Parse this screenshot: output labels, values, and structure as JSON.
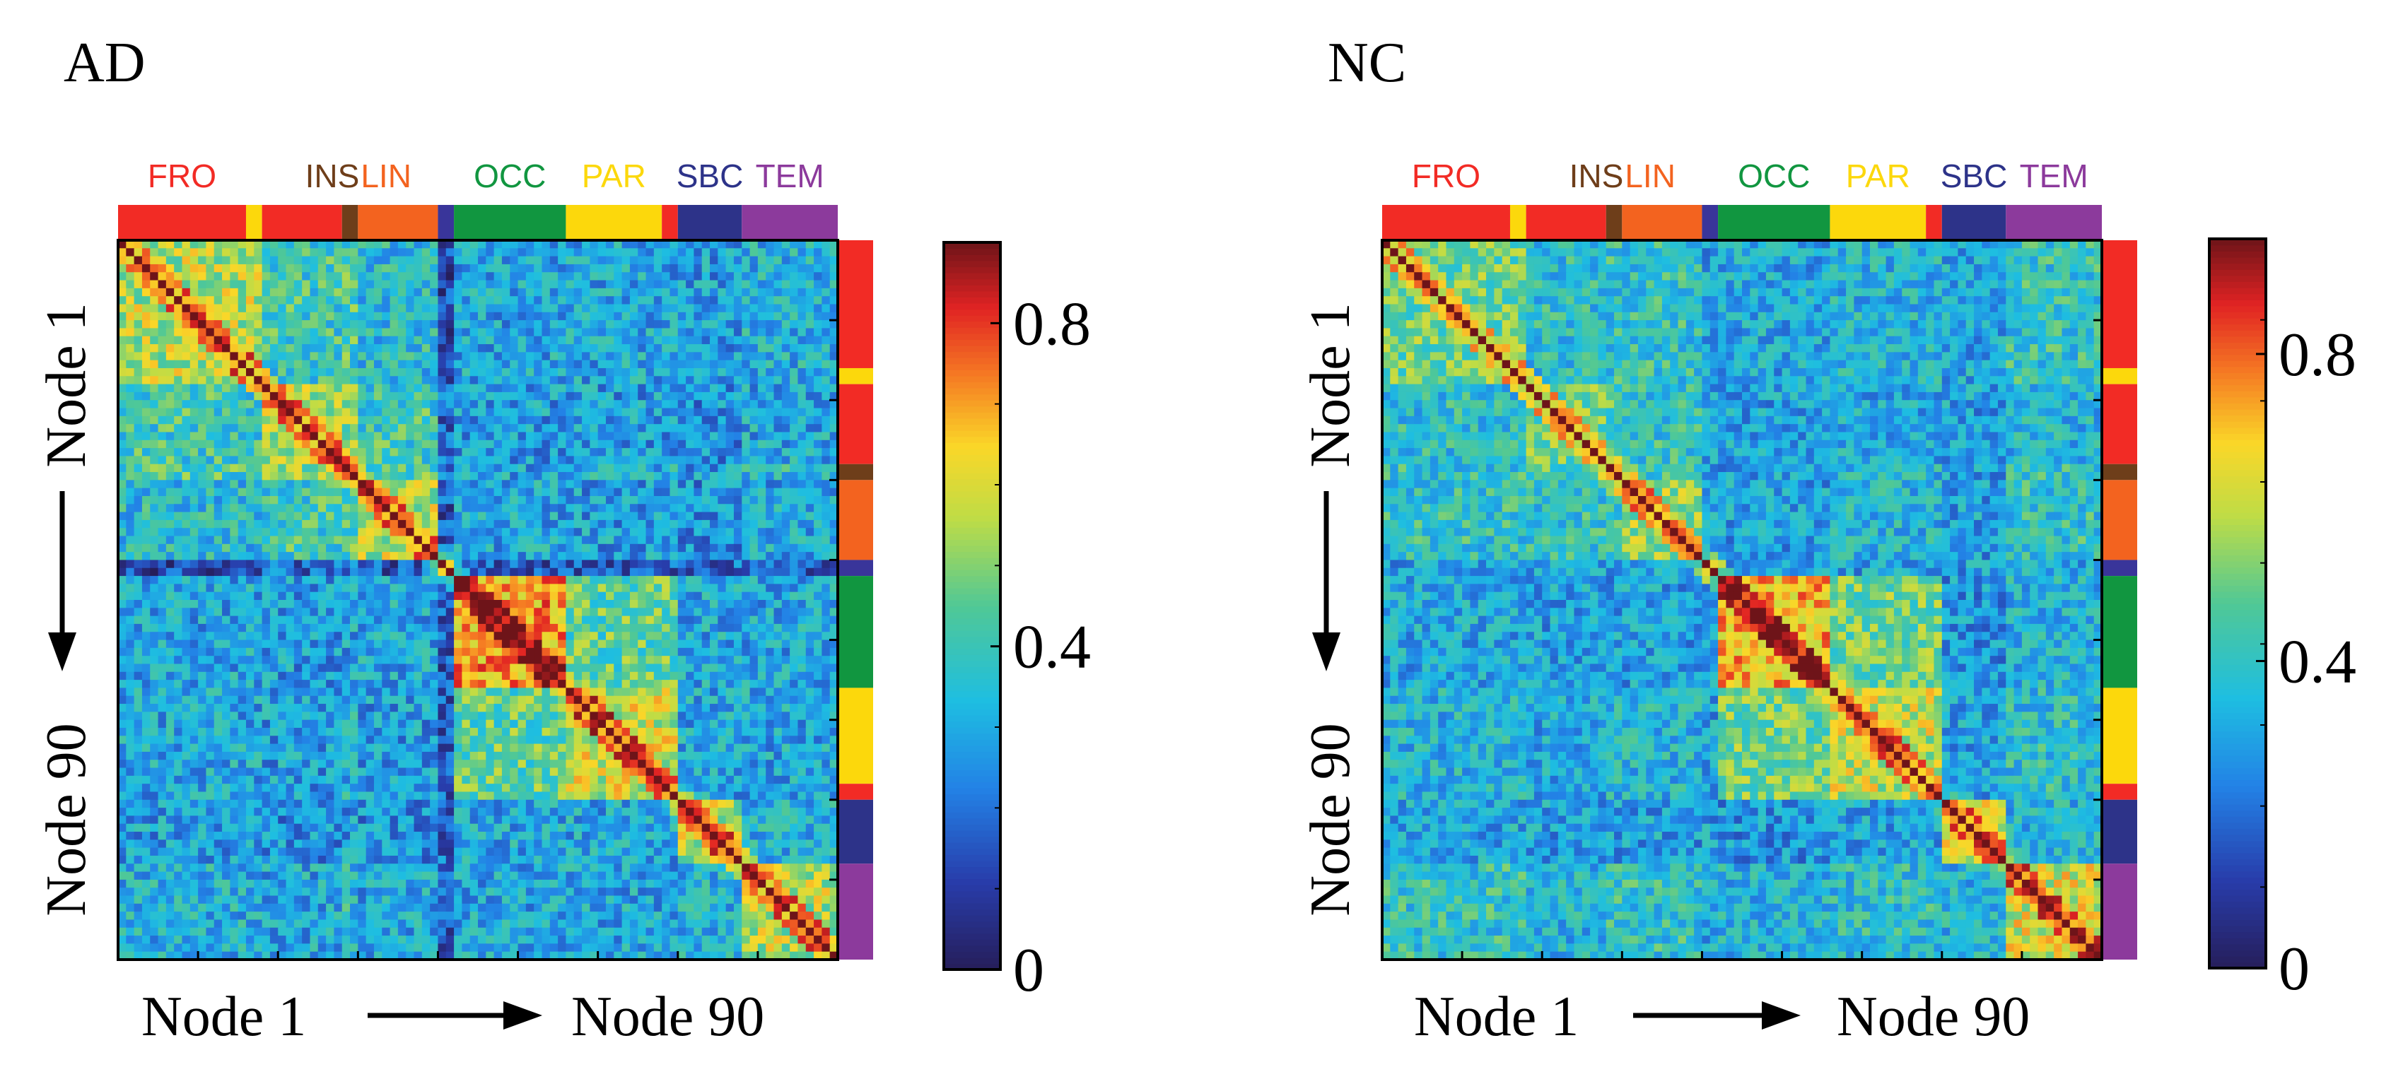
{
  "figure": {
    "x_label_start": "Node 1",
    "x_label_end": "Node 90",
    "y_label_start": "Node 1",
    "y_label_end": "Node 90"
  },
  "regions": [
    {
      "label": "FRO",
      "color": "#f22b25",
      "start": 0,
      "end": 16,
      "show_label": true
    },
    {
      "label": "",
      "color": "#fcd80c",
      "start": 16,
      "end": 18,
      "show_label": false
    },
    {
      "label": "",
      "color": "#f22b25",
      "start": 18,
      "end": 28,
      "show_label": false
    },
    {
      "label": "INS",
      "color": "#6e3e1a",
      "start": 28,
      "end": 30,
      "show_label": true
    },
    {
      "label": "LIN",
      "color": "#f3631f",
      "start": 30,
      "end": 40,
      "show_label": true
    },
    {
      "label": "",
      "color": "#39359a",
      "start": 40,
      "end": 42,
      "show_label": false
    },
    {
      "label": "OCC",
      "color": "#119640",
      "start": 42,
      "end": 56,
      "show_label": true
    },
    {
      "label": "PAR",
      "color": "#fcd80c",
      "start": 56,
      "end": 68,
      "show_label": true
    },
    {
      "label": "",
      "color": "#f22b25",
      "start": 68,
      "end": 70,
      "show_label": false
    },
    {
      "label": "SBC",
      "color": "#2d3389",
      "start": 70,
      "end": 78,
      "show_label": true
    },
    {
      "label": "TEM",
      "color": "#8c3a9c",
      "start": 78,
      "end": 90,
      "show_label": true
    }
  ],
  "chart_data": [
    {
      "type": "heatmap",
      "title": "AD",
      "n_nodes": 90,
      "matrix": "symmetric 90x90 correlation matrix (functional connectivity between 90 nodes); diagonal = 1 (saturated); within-module blocks elevated",
      "colorscale": "jet",
      "colorbar_range": [
        0,
        0.9
      ],
      "colorbar_ticks": [
        0,
        0.4,
        0.8
      ],
      "colorbar_tick_labels": [
        "0",
        "0.4",
        "0.8"
      ],
      "block_means": [
        [
          0.55,
          0.4,
          0.42,
          0.35,
          0.12,
          0.3,
          0.3,
          0.28,
          0.32
        ],
        [
          0.4,
          0.55,
          0.5,
          0.4,
          0.18,
          0.28,
          0.28,
          0.26,
          0.3
        ],
        [
          0.42,
          0.5,
          0.7,
          0.42,
          0.2,
          0.3,
          0.32,
          0.28,
          0.35
        ],
        [
          0.35,
          0.4,
          0.42,
          0.55,
          0.15,
          0.3,
          0.28,
          0.26,
          0.3
        ],
        [
          0.12,
          0.18,
          0.2,
          0.15,
          0.45,
          0.15,
          0.15,
          0.18,
          0.15
        ],
        [
          0.3,
          0.28,
          0.3,
          0.3,
          0.15,
          0.7,
          0.45,
          0.3,
          0.3
        ],
        [
          0.3,
          0.28,
          0.32,
          0.28,
          0.15,
          0.45,
          0.58,
          0.3,
          0.3
        ],
        [
          0.28,
          0.26,
          0.28,
          0.26,
          0.18,
          0.3,
          0.3,
          0.55,
          0.32
        ],
        [
          0.32,
          0.3,
          0.35,
          0.3,
          0.15,
          0.3,
          0.3,
          0.32,
          0.55
        ]
      ]
    },
    {
      "type": "heatmap",
      "title": "NC",
      "n_nodes": 90,
      "matrix": "symmetric 90x90 correlation matrix (functional connectivity between 90 nodes); diagonal = 1 (saturated); within-module blocks elevated",
      "colorscale": "jet",
      "colorbar_range": [
        0,
        0.95
      ],
      "colorbar_ticks": [
        0,
        0.4,
        0.8
      ],
      "colorbar_tick_labels": [
        "0",
        "0.4",
        "0.8"
      ],
      "block_means": [
        [
          0.5,
          0.38,
          0.4,
          0.4,
          0.3,
          0.32,
          0.35,
          0.32,
          0.4
        ],
        [
          0.38,
          0.5,
          0.45,
          0.4,
          0.3,
          0.3,
          0.32,
          0.3,
          0.35
        ],
        [
          0.4,
          0.45,
          0.65,
          0.42,
          0.32,
          0.3,
          0.35,
          0.3,
          0.4
        ],
        [
          0.4,
          0.4,
          0.42,
          0.55,
          0.32,
          0.3,
          0.35,
          0.3,
          0.4
        ],
        [
          0.3,
          0.3,
          0.32,
          0.32,
          0.5,
          0.3,
          0.3,
          0.3,
          0.32
        ],
        [
          0.32,
          0.3,
          0.3,
          0.3,
          0.3,
          0.72,
          0.5,
          0.28,
          0.35
        ],
        [
          0.35,
          0.32,
          0.35,
          0.35,
          0.3,
          0.5,
          0.6,
          0.3,
          0.38
        ],
        [
          0.32,
          0.3,
          0.3,
          0.3,
          0.3,
          0.28,
          0.3,
          0.6,
          0.35
        ],
        [
          0.4,
          0.35,
          0.4,
          0.4,
          0.32,
          0.35,
          0.38,
          0.35,
          0.62
        ]
      ]
    }
  ]
}
